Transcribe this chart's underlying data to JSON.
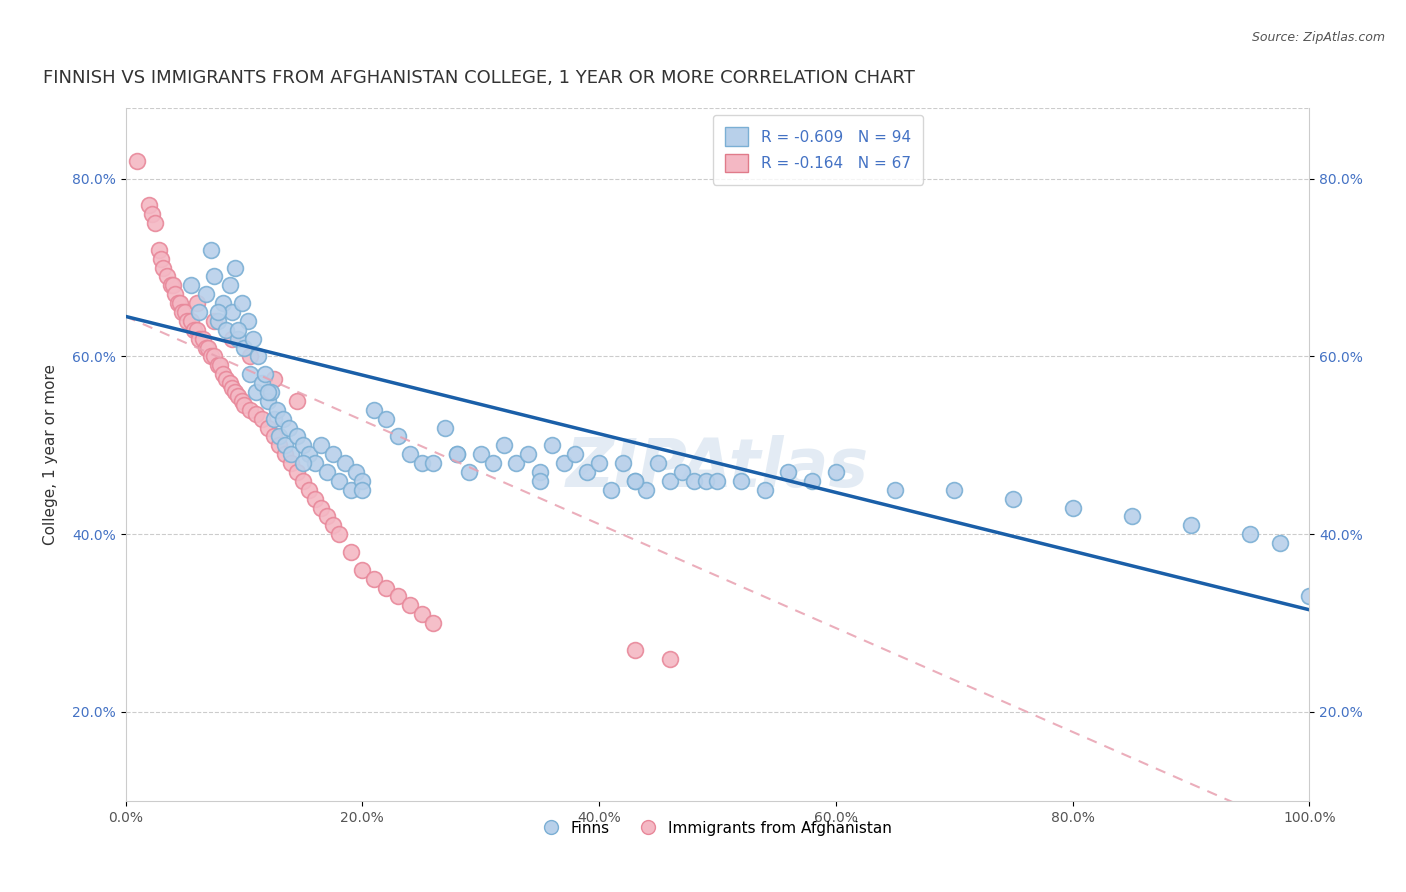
{
  "title": "FINNISH VS IMMIGRANTS FROM AFGHANISTAN COLLEGE, 1 YEAR OR MORE CORRELATION CHART",
  "source": "Source: ZipAtlas.com",
  "xlabel": "",
  "ylabel": "College, 1 year or more",
  "xlim": [
    0.0,
    1.0
  ],
  "ylim": [
    0.1,
    0.88
  ],
  "yticks": [
    0.2,
    0.4,
    0.6,
    0.8
  ],
  "ytick_labels": [
    "20.0%",
    "40.0%",
    "60.0%",
    "80.0%"
  ],
  "xticks": [
    0.0,
    0.2,
    0.4,
    0.6,
    0.8,
    1.0
  ],
  "xtick_labels": [
    "0.0%",
    "20.0%",
    "40.0%",
    "60.0%",
    "80.0%",
    "100.0%"
  ],
  "legend_r_entries": [
    {
      "label": "R = -0.609   N = 94",
      "facecolor": "#b8d0ea",
      "edgecolor": "#7bafd4"
    },
    {
      "label": "R = -0.164   N = 67",
      "facecolor": "#f4b8c4",
      "edgecolor": "#e07b8a"
    }
  ],
  "finn_color": "#b8d0ea",
  "finn_edge_color": "#7bafd4",
  "afghan_color": "#f4b8c4",
  "afghan_edge_color": "#e8889a",
  "finn_line_color": "#1a5fa8",
  "afghan_line_color": "#e8a0b0",
  "watermark": "ZIPAtlas",
  "finn_scatter_x": [
    0.055,
    0.062,
    0.068,
    0.072,
    0.075,
    0.078,
    0.082,
    0.085,
    0.088,
    0.09,
    0.092,
    0.095,
    0.098,
    0.1,
    0.103,
    0.105,
    0.108,
    0.11,
    0.112,
    0.115,
    0.118,
    0.12,
    0.123,
    0.125,
    0.128,
    0.13,
    0.133,
    0.135,
    0.138,
    0.14,
    0.145,
    0.15,
    0.155,
    0.16,
    0.165,
    0.17,
    0.175,
    0.18,
    0.185,
    0.19,
    0.195,
    0.2,
    0.21,
    0.22,
    0.23,
    0.24,
    0.25,
    0.26,
    0.27,
    0.28,
    0.29,
    0.3,
    0.31,
    0.32,
    0.33,
    0.34,
    0.35,
    0.36,
    0.37,
    0.38,
    0.39,
    0.4,
    0.41,
    0.42,
    0.43,
    0.44,
    0.45,
    0.46,
    0.47,
    0.48,
    0.49,
    0.5,
    0.52,
    0.54,
    0.56,
    0.58,
    0.6,
    0.65,
    0.7,
    0.75,
    0.8,
    0.85,
    0.9,
    0.95,
    0.975,
    1.0,
    0.43,
    0.35,
    0.28,
    0.2,
    0.15,
    0.12,
    0.095,
    0.078
  ],
  "finn_scatter_y": [
    0.68,
    0.65,
    0.67,
    0.72,
    0.69,
    0.64,
    0.66,
    0.63,
    0.68,
    0.65,
    0.7,
    0.62,
    0.66,
    0.61,
    0.64,
    0.58,
    0.62,
    0.56,
    0.6,
    0.57,
    0.58,
    0.55,
    0.56,
    0.53,
    0.54,
    0.51,
    0.53,
    0.5,
    0.52,
    0.49,
    0.51,
    0.5,
    0.49,
    0.48,
    0.5,
    0.47,
    0.49,
    0.46,
    0.48,
    0.45,
    0.47,
    0.46,
    0.54,
    0.53,
    0.51,
    0.49,
    0.48,
    0.48,
    0.52,
    0.49,
    0.47,
    0.49,
    0.48,
    0.5,
    0.48,
    0.49,
    0.47,
    0.5,
    0.48,
    0.49,
    0.47,
    0.48,
    0.45,
    0.48,
    0.46,
    0.45,
    0.48,
    0.46,
    0.47,
    0.46,
    0.46,
    0.46,
    0.46,
    0.45,
    0.47,
    0.46,
    0.47,
    0.45,
    0.45,
    0.44,
    0.43,
    0.42,
    0.41,
    0.4,
    0.39,
    0.33,
    0.46,
    0.46,
    0.49,
    0.45,
    0.48,
    0.56,
    0.63,
    0.65
  ],
  "afghan_scatter_x": [
    0.01,
    0.02,
    0.022,
    0.025,
    0.028,
    0.03,
    0.032,
    0.035,
    0.038,
    0.04,
    0.042,
    0.044,
    0.046,
    0.048,
    0.05,
    0.052,
    0.055,
    0.058,
    0.06,
    0.062,
    0.065,
    0.068,
    0.07,
    0.072,
    0.075,
    0.078,
    0.08,
    0.082,
    0.085,
    0.088,
    0.09,
    0.092,
    0.095,
    0.098,
    0.1,
    0.105,
    0.11,
    0.115,
    0.12,
    0.125,
    0.13,
    0.135,
    0.14,
    0.145,
    0.15,
    0.155,
    0.16,
    0.165,
    0.17,
    0.175,
    0.18,
    0.19,
    0.2,
    0.21,
    0.22,
    0.23,
    0.24,
    0.25,
    0.26,
    0.43,
    0.46,
    0.06,
    0.075,
    0.09,
    0.105,
    0.125,
    0.145
  ],
  "afghan_scatter_y": [
    0.82,
    0.77,
    0.76,
    0.75,
    0.72,
    0.71,
    0.7,
    0.69,
    0.68,
    0.68,
    0.67,
    0.66,
    0.66,
    0.65,
    0.65,
    0.64,
    0.64,
    0.63,
    0.63,
    0.62,
    0.62,
    0.61,
    0.61,
    0.6,
    0.6,
    0.59,
    0.59,
    0.58,
    0.575,
    0.57,
    0.565,
    0.56,
    0.555,
    0.55,
    0.545,
    0.54,
    0.535,
    0.53,
    0.52,
    0.51,
    0.5,
    0.49,
    0.48,
    0.47,
    0.46,
    0.45,
    0.44,
    0.43,
    0.42,
    0.41,
    0.4,
    0.38,
    0.36,
    0.35,
    0.34,
    0.33,
    0.32,
    0.31,
    0.3,
    0.27,
    0.26,
    0.66,
    0.64,
    0.62,
    0.6,
    0.575,
    0.55
  ],
  "finn_line_x": [
    0.0,
    1.0
  ],
  "finn_line_y": [
    0.645,
    0.315
  ],
  "afghan_line_x": [
    0.0,
    0.95
  ],
  "afghan_line_y": [
    0.645,
    0.09
  ],
  "grid_color": "#cccccc",
  "background_color": "#ffffff",
  "title_fontsize": 13,
  "axis_fontsize": 11,
  "tick_fontsize": 10,
  "legend_fontsize": 11
}
